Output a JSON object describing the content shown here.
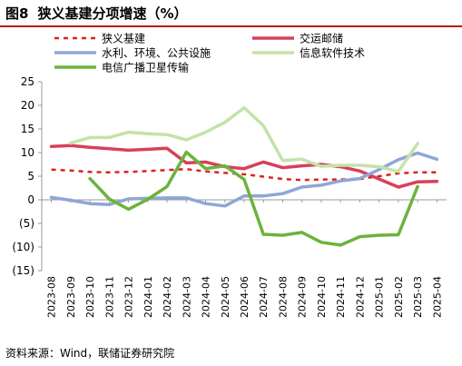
{
  "figure": {
    "number": "图8",
    "title": "狭义基建分项增速（%）",
    "source": "资料来源：Wind，联储证券研究院"
  },
  "colors": {
    "accent_rule": "#b01c1c",
    "axis": "#999999",
    "tick_text": "#000000"
  },
  "chart_data": {
    "type": "line",
    "title": "狭义基建分项增速（%）",
    "xlabel": "",
    "ylabel": "",
    "ylim": [
      -15,
      25
    ],
    "yticks": [
      -15,
      -10,
      -5,
      0,
      5,
      10,
      15,
      20,
      25
    ],
    "ytick_labels": [
      "(15)",
      "(10)",
      "(5)",
      "0",
      "5",
      "10",
      "15",
      "20",
      "25"
    ],
    "grid": false,
    "legend_position": "top",
    "categories": [
      "2023-08",
      "2023-09",
      "2023-10",
      "2023-11",
      "2023-12",
      "2024-01",
      "2024-02",
      "2024-03",
      "2024-04",
      "2024-05",
      "2024-06",
      "2024-07",
      "2024-08",
      "2024-09",
      "2024-10",
      "2024-11",
      "2024-12",
      "2025-01",
      "2025-02",
      "2025-03",
      "2025-04"
    ],
    "series": [
      {
        "name": "狭义基建",
        "color": "#e0201b",
        "dash": true,
        "values": [
          6.4,
          6.2,
          5.9,
          5.8,
          5.9,
          6.1,
          6.3,
          6.5,
          6.0,
          5.7,
          5.4,
          4.9,
          4.4,
          4.2,
          4.3,
          4.3,
          4.4,
          5.0,
          5.6,
          5.8,
          5.8
        ]
      },
      {
        "name": "交运邮储",
        "color": "#d8405a",
        "dash": false,
        "values": [
          11.3,
          11.5,
          11.1,
          10.8,
          10.5,
          10.7,
          10.9,
          7.8,
          8.0,
          7.0,
          6.6,
          8.0,
          6.8,
          7.2,
          7.5,
          7.0,
          6.1,
          4.4,
          2.7,
          3.8,
          3.9
        ]
      },
      {
        "name": "水利、环境、公共设施",
        "color": "#8fa6d6",
        "dash": false,
        "values": [
          0.5,
          -0.1,
          -0.8,
          -1.0,
          0.2,
          0.3,
          0.4,
          0.4,
          -0.8,
          -1.3,
          0.8,
          0.8,
          1.3,
          2.7,
          3.1,
          4.0,
          4.5,
          6.4,
          8.5,
          9.9,
          8.6
        ]
      },
      {
        "name": "信息软件技术",
        "color": "#c3e3a8",
        "dash": false,
        "values": [
          null,
          12.0,
          13.2,
          13.2,
          14.3,
          14.0,
          13.8,
          12.7,
          14.3,
          16.4,
          19.5,
          15.7,
          8.3,
          8.6,
          7.1,
          7.3,
          7.3,
          7.0,
          6.0,
          11.9,
          null
        ]
      },
      {
        "name": "电信广播卫星传输",
        "color": "#6cb33e",
        "dash": false,
        "values": [
          null,
          null,
          4.5,
          0.2,
          -2.0,
          0.1,
          2.8,
          10.1,
          6.6,
          7.2,
          4.3,
          -7.3,
          -7.5,
          -6.9,
          -9.0,
          -9.6,
          -7.8,
          -7.5,
          -7.4,
          2.8,
          null
        ]
      }
    ]
  }
}
